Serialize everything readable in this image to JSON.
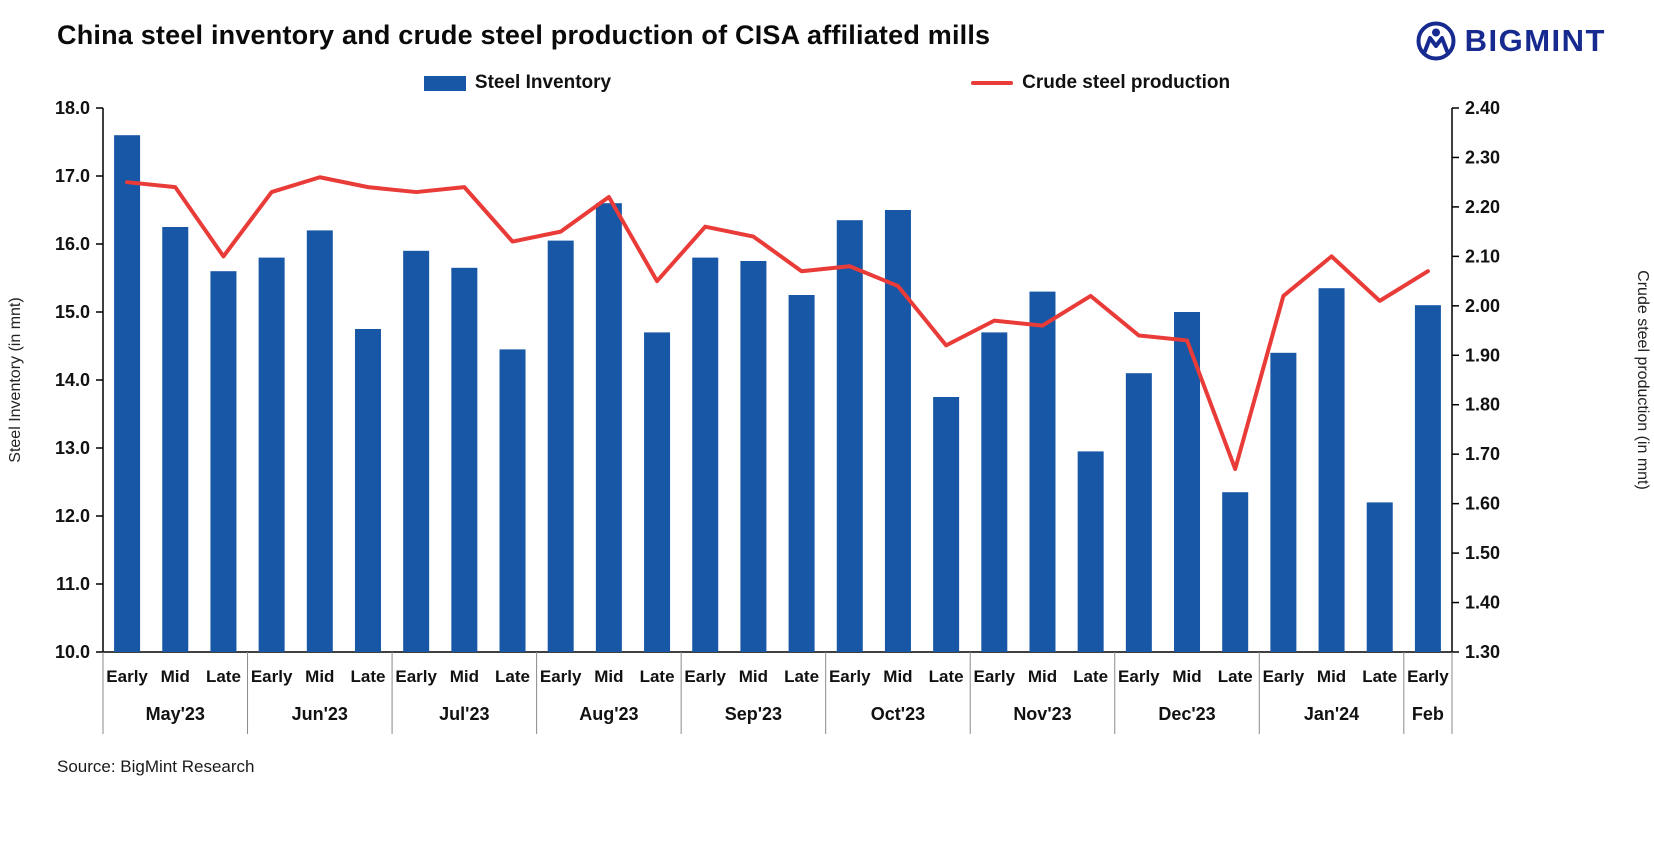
{
  "header": {
    "title": "China steel inventory and crude steel production of CISA affiliated mills",
    "brand": "BIGMINT"
  },
  "colors": {
    "bar": "#1757A6",
    "line": "#E93C39",
    "brand": "#172A8F"
  },
  "legend": [
    {
      "label": "Steel Inventory",
      "type": "bar"
    },
    {
      "label": "Crude steel production",
      "type": "line"
    }
  ],
  "chart_data": {
    "type": "bar+line",
    "groups": [
      {
        "label": "May'23",
        "periods": [
          "Early",
          "Mid",
          "Late"
        ]
      },
      {
        "label": "Jun'23",
        "periods": [
          "Early",
          "Mid",
          "Late"
        ]
      },
      {
        "label": "Jul'23",
        "periods": [
          "Early",
          "Mid",
          "Late"
        ]
      },
      {
        "label": "Aug'23",
        "periods": [
          "Early",
          "Mid",
          "Late"
        ]
      },
      {
        "label": "Sep'23",
        "periods": [
          "Early",
          "Mid",
          "Late"
        ]
      },
      {
        "label": "Oct'23",
        "periods": [
          "Early",
          "Mid",
          "Late"
        ]
      },
      {
        "label": "Nov'23",
        "periods": [
          "Early",
          "Mid",
          "Late"
        ]
      },
      {
        "label": "Dec'23",
        "periods": [
          "Early",
          "Mid",
          "Late"
        ]
      },
      {
        "label": "Jan'24",
        "periods": [
          "Early",
          "Mid",
          "Late"
        ]
      },
      {
        "label": "Feb",
        "periods": [
          "Early"
        ]
      }
    ],
    "series": [
      {
        "name": "Steel Inventory",
        "type": "bar",
        "axis": "left",
        "values": [
          17.6,
          16.25,
          15.6,
          15.8,
          16.2,
          14.75,
          15.9,
          15.65,
          14.45,
          16.05,
          16.6,
          14.7,
          15.8,
          15.75,
          15.25,
          16.35,
          16.5,
          13.75,
          14.7,
          15.3,
          12.95,
          14.1,
          15.0,
          12.35,
          14.4,
          15.35,
          12.2,
          15.1
        ]
      },
      {
        "name": "Crude steel production",
        "type": "line",
        "axis": "right",
        "values": [
          2.25,
          2.24,
          2.1,
          2.23,
          2.26,
          2.24,
          2.23,
          2.24,
          2.13,
          2.15,
          2.22,
          2.05,
          2.16,
          2.14,
          2.07,
          2.08,
          2.04,
          1.92,
          1.97,
          1.96,
          2.02,
          1.94,
          1.93,
          1.67,
          2.02,
          2.1,
          2.01,
          2.07
        ]
      }
    ],
    "left_axis": {
      "label": "Steel Inventory (in mnt)",
      "min": 10.0,
      "max": 18.0,
      "step": 1.0
    },
    "right_axis": {
      "label": "Crude steel production (in mnt)",
      "min": 1.3,
      "max": 2.4,
      "step": 0.1
    },
    "grid": false,
    "legend_position": "top"
  },
  "footer": {
    "source": "Source: BigMint Research"
  }
}
